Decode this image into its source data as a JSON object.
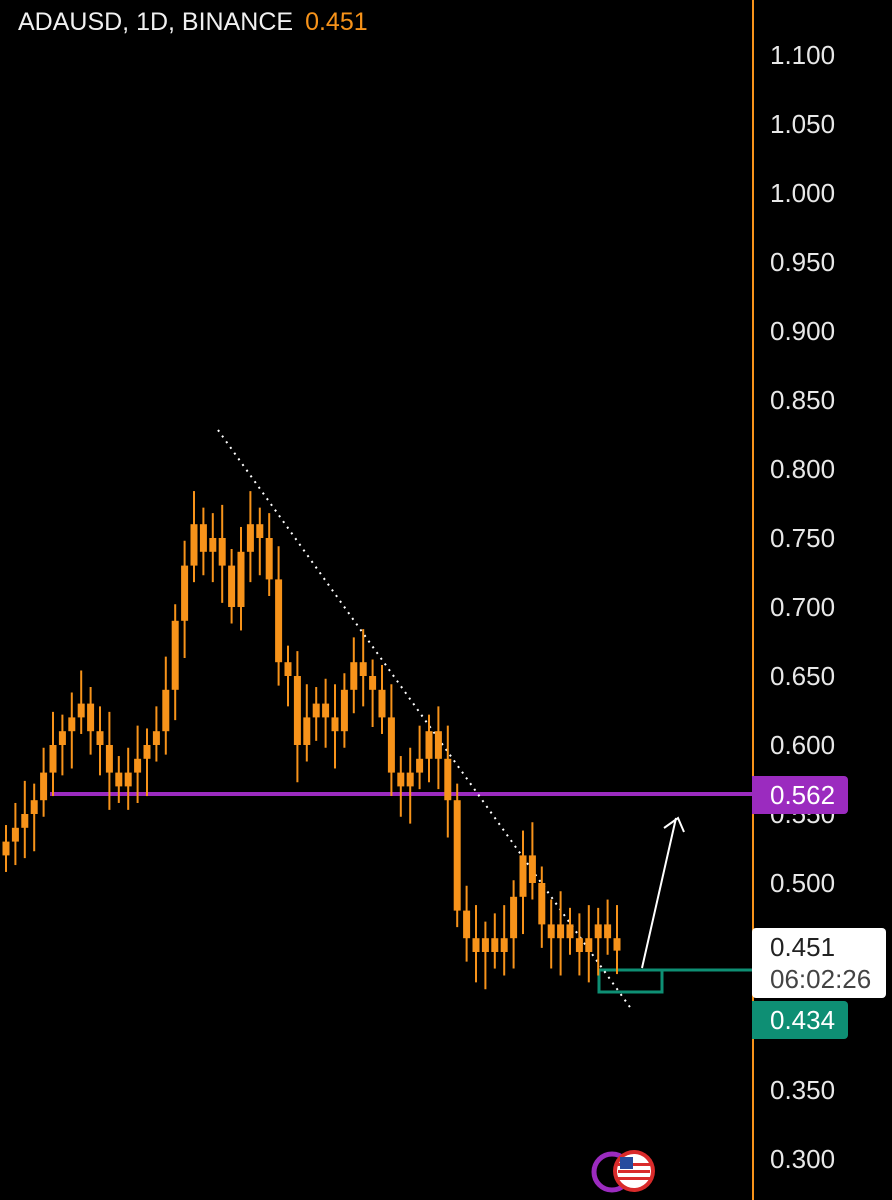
{
  "header": {
    "symbol_line": "ADAUSD, 1D, BINANCE",
    "last_price": "0.451"
  },
  "price_axis": {
    "ticks": [
      "1.100",
      "1.050",
      "1.000",
      "0.950",
      "0.900",
      "0.850",
      "0.800",
      "0.750",
      "0.700",
      "0.650",
      "0.600",
      "0.550",
      "0.500",
      "0.350",
      "0.300"
    ],
    "resistance_tag": "0.562",
    "support_tag": "0.434",
    "last_tag": {
      "price": "0.451",
      "countdown": "06:02:26"
    }
  },
  "colors": {
    "candle": "#f7931a",
    "resistance": "#9b2bbf",
    "support": "#0e8f74",
    "trendline": "#ffffff",
    "background": "#000000"
  },
  "icons": [
    "us-flag-icon",
    "indicator-icon"
  ],
  "chart_data": {
    "type": "candlestick",
    "symbol": "ADAUSD",
    "interval": "1D",
    "exchange": "BINANCE",
    "ylim": [
      0.28,
      1.12
    ],
    "close_series": [
      0.53,
      0.54,
      0.55,
      0.56,
      0.58,
      0.6,
      0.61,
      0.62,
      0.63,
      0.61,
      0.6,
      0.58,
      0.57,
      0.58,
      0.59,
      0.6,
      0.61,
      0.64,
      0.69,
      0.73,
      0.76,
      0.74,
      0.75,
      0.73,
      0.7,
      0.74,
      0.76,
      0.75,
      0.72,
      0.66,
      0.65,
      0.6,
      0.62,
      0.63,
      0.62,
      0.61,
      0.64,
      0.66,
      0.65,
      0.64,
      0.62,
      0.58,
      0.57,
      0.58,
      0.59,
      0.61,
      0.59,
      0.56,
      0.48,
      0.46,
      0.45,
      0.46,
      0.45,
      0.46,
      0.49,
      0.52,
      0.5,
      0.47,
      0.46,
      0.47,
      0.46,
      0.45,
      0.46,
      0.47,
      0.46,
      0.451
    ],
    "resistance_level": 0.562,
    "support_zone": 0.434,
    "last_price": 0.451
  }
}
